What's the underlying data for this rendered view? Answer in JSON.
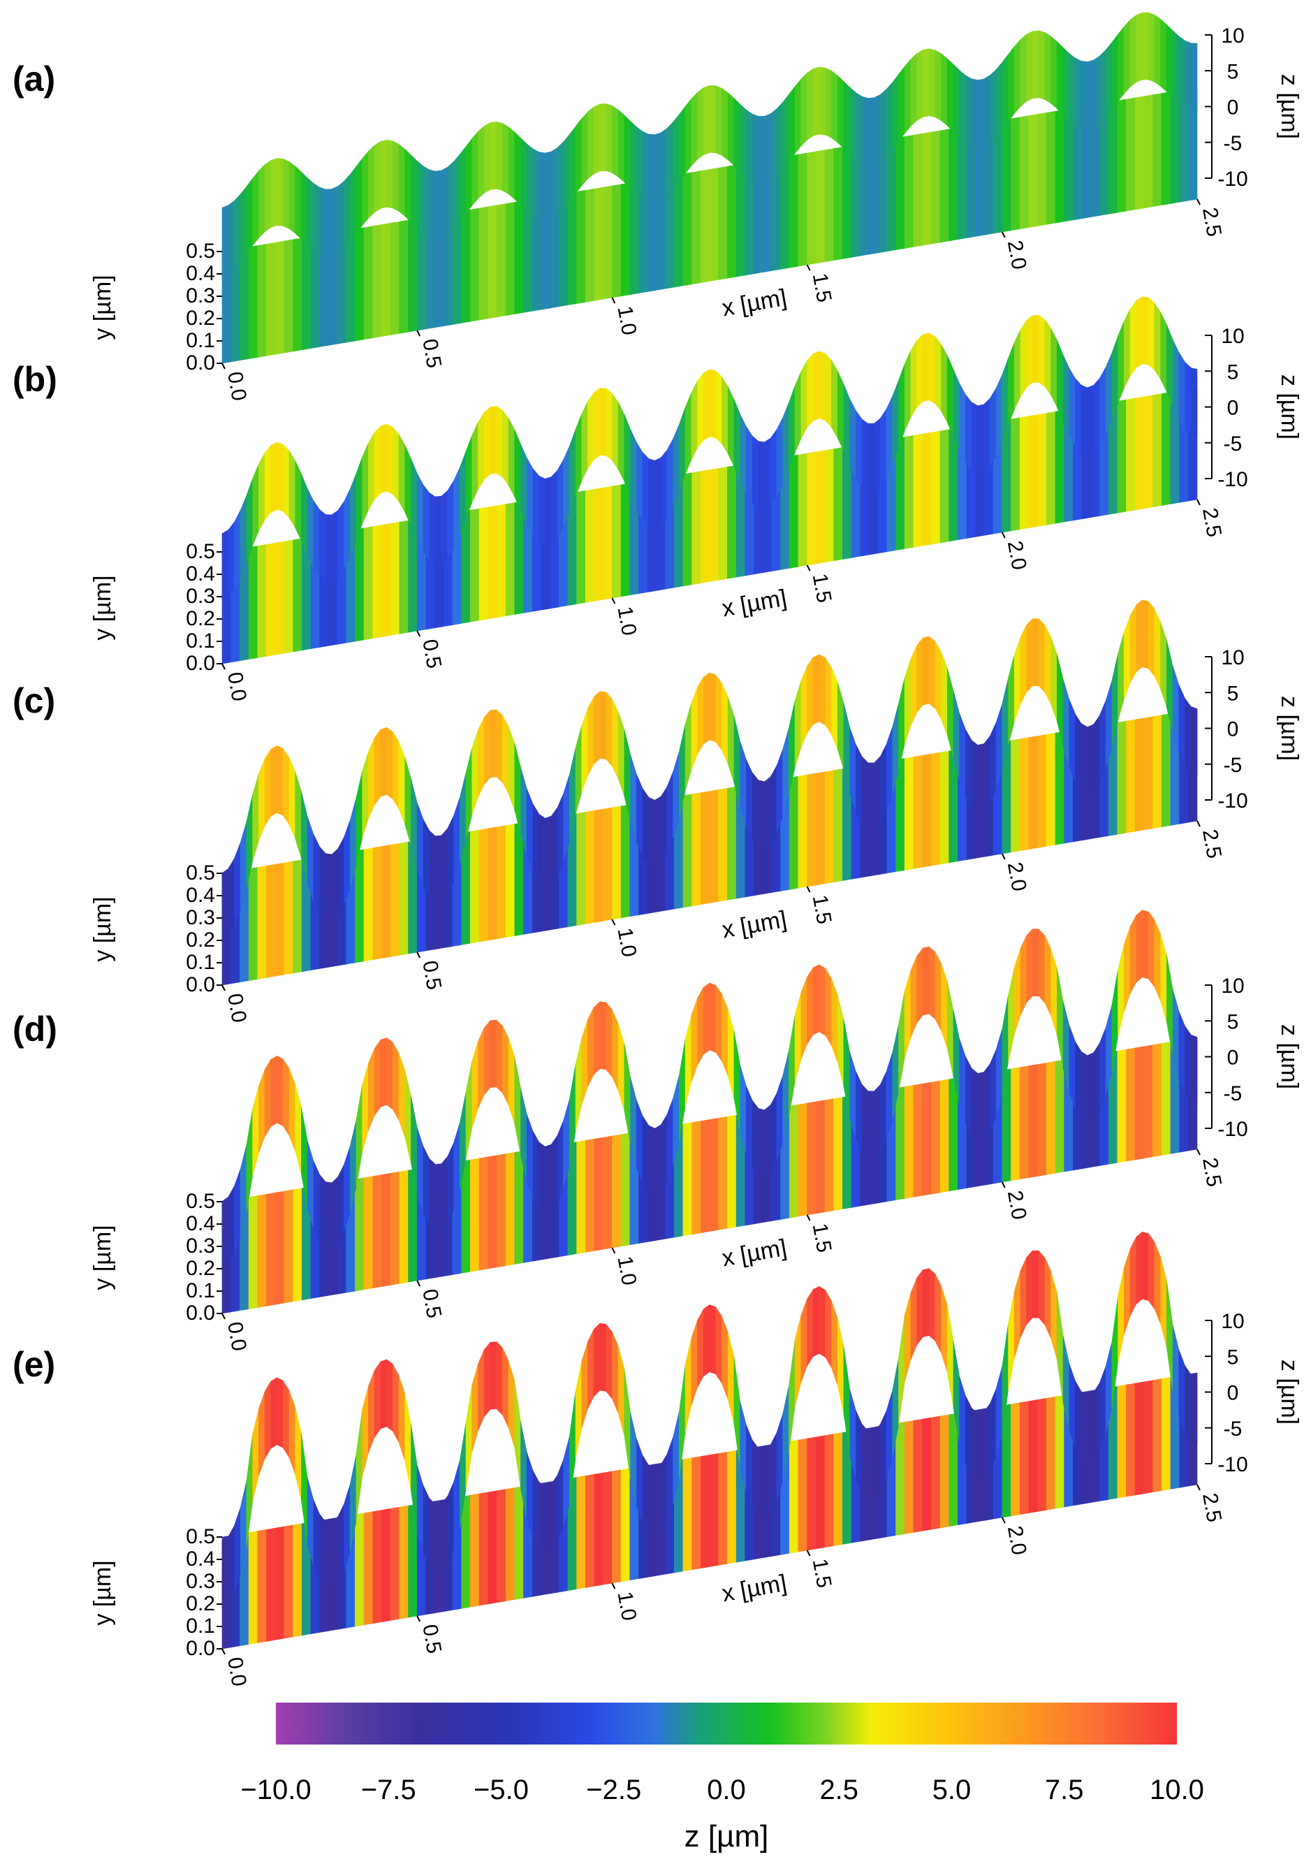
{
  "chart_data": {
    "type": "surface3d",
    "colormap": {
      "stops": [
        "#a23fb0",
        "#5b3ea3",
        "#3a2fa0",
        "#2a36b4",
        "#2b49e6",
        "#2f73e0",
        "#1aa07a",
        "#18c21e",
        "#7bd322",
        "#f2ec08",
        "#fdc60b",
        "#fb9a1f",
        "#fb6a35",
        "#f5353a"
      ],
      "vmin": -10,
      "vmax": 10
    },
    "colorbar": {
      "title": "z [µm]",
      "ticks": [
        "−10.0",
        "−7.5",
        "−5.0",
        "−2.5",
        "0.0",
        "2.5",
        "5.0",
        "7.5",
        "10.0"
      ]
    },
    "x_axis": {
      "label": "x [µm]",
      "range": [
        0,
        2.5
      ],
      "ticks": [
        "0.0",
        "0.5",
        "1.0",
        "1.5",
        "2.0",
        "2.5"
      ]
    },
    "y_axis": {
      "label": "y [µm]",
      "range": [
        0,
        0.5
      ],
      "ticks": [
        "0.0",
        "0.1",
        "0.2",
        "0.3",
        "0.4",
        "0.5"
      ]
    },
    "z_axis": {
      "label": "z [µm]",
      "range": [
        -10,
        10
      ],
      "ticks": [
        "10",
        "5",
        "0",
        "-5",
        "-10"
      ]
    },
    "panels": [
      {
        "label": "(a)",
        "periods": 9,
        "amplitude": 2.2,
        "offset": 0.5,
        "sharp": 0.0
      },
      {
        "label": "(b)",
        "periods": 9,
        "amplitude": 4.5,
        "offset": 0.0,
        "sharp": 0.15
      },
      {
        "label": "(c)",
        "periods": 9,
        "amplitude": 6.5,
        "offset": 0.0,
        "sharp": 0.35
      },
      {
        "label": "(d)",
        "periods": 9,
        "amplitude": 7.5,
        "offset": 1.0,
        "sharp": 0.55
      },
      {
        "label": "(e)",
        "periods": 9,
        "amplitude": 8.5,
        "offset": 1.5,
        "sharp": 0.75
      }
    ]
  }
}
